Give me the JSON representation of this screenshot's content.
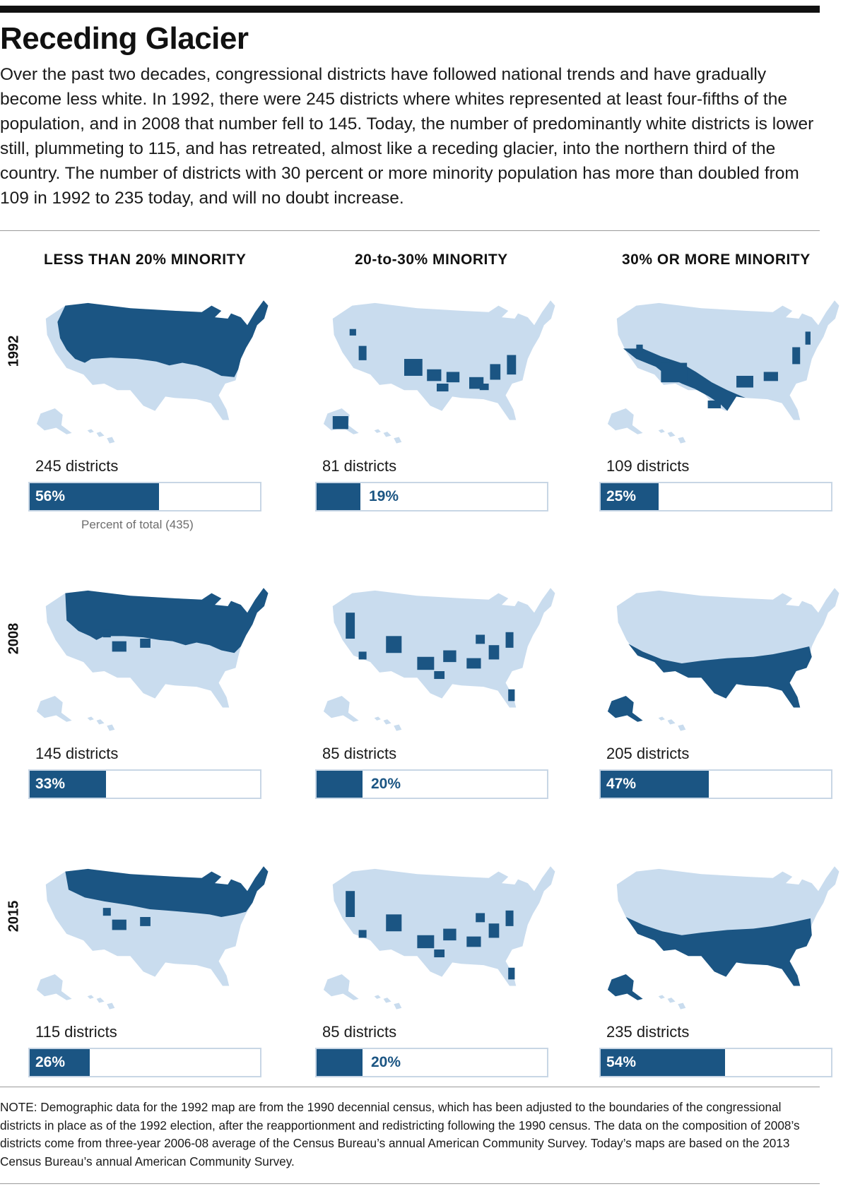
{
  "title": "Receding Glacier",
  "intro": "Over the past two decades, congressional districts have followed national trends and have gradually become less white. In 1992, there were 245 districts where whites represented at least four-fifths of the population, and in 2008 that number fell to 145. Today, the number of predominantly white districts is lower still, plummeting to 115, and has retreated, almost like a receding glacier, into the northern third of the country. The number of districts with 30 percent or more minority population has more than doubled from 109 in 1992 to 235 today, and will no doubt increase.",
  "note": "NOTE: Demographic data for the 1992 map are from the 1990 decennial census, which has been adjusted to the boundaries of the congressional districts in place as of the 1992 election, after the reapportionment and redistricting following the 1990 census. The data on the composition of 2008’s districts come from three-year 2006-08 average of the Census Bureau’s annual American Community Survey. Today’s maps are based on the 2013 Census Bureau’s annual American Community Survey.",
  "colors": {
    "dark": "#1b5583",
    "light": "#c9dcee",
    "bar_border": "#c8d6e5"
  },
  "chart_data": {
    "type": "bar",
    "orientation": "horizontal",
    "total_label": "Percent of total (435)",
    "categories": [
      "LESS THAN 20% MINORITY",
      "20-to-30% MINORITY",
      "30% OR MORE MINORITY"
    ],
    "years": [
      "1992",
      "2008",
      "2015"
    ],
    "xlim": [
      0,
      100
    ],
    "series": [
      {
        "name": "1992",
        "counts": [
          "245 districts",
          "81 districts",
          "109 districts"
        ],
        "values": [
          56,
          19,
          25
        ],
        "labels": [
          "56%",
          "19%",
          "25%"
        ]
      },
      {
        "name": "2008",
        "counts": [
          "145 districts",
          "85 districts",
          "205 districts"
        ],
        "values": [
          33,
          20,
          47
        ],
        "labels": [
          "33%",
          "20%",
          "47%"
        ]
      },
      {
        "name": "2015",
        "counts": [
          "115 districts",
          "85 districts",
          "235 districts"
        ],
        "values": [
          26,
          20,
          54
        ],
        "labels": [
          "26%",
          "20%",
          "54%"
        ]
      }
    ],
    "maps": [
      [
        "northern-majority",
        "southern-scattered",
        "southwest-sparse"
      ],
      [
        "northern-band",
        "mixed-scattered",
        "southern-wide"
      ],
      [
        "north-narrow",
        "mixed-scattered",
        "south-broad"
      ]
    ]
  }
}
